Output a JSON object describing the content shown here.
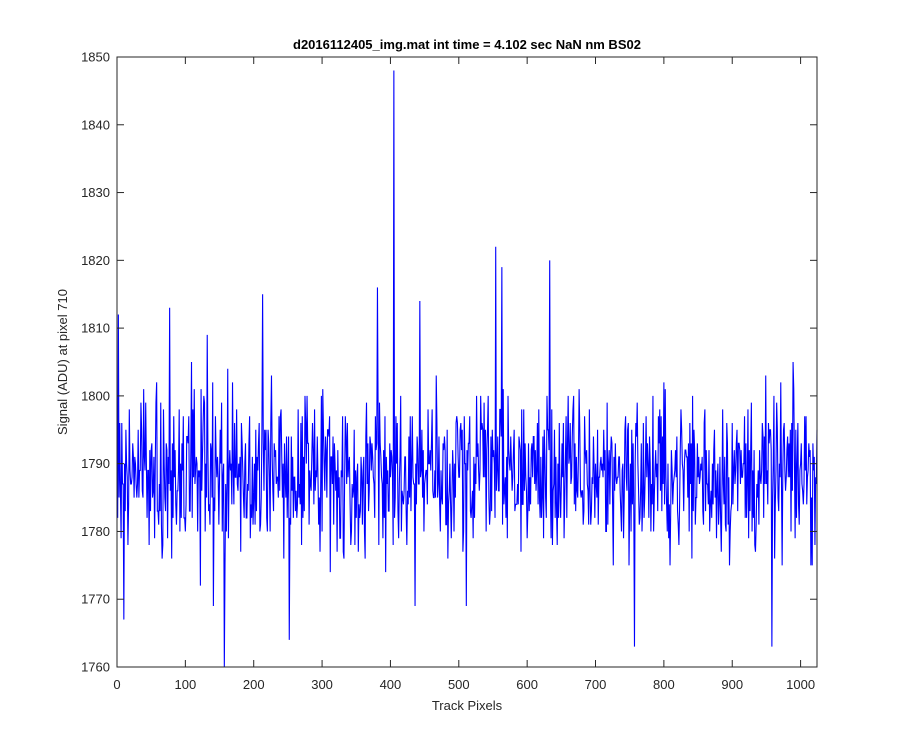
{
  "chart_data": {
    "type": "line",
    "title": "d2016112405_img.mat int time = 4.102 sec  NaN nm BS02",
    "xlabel": "Track Pixels",
    "ylabel": "Signal (ADU) at pixel 710",
    "xlim": [
      0,
      1024
    ],
    "ylim": [
      1760,
      1850
    ],
    "xticks": [
      0,
      100,
      200,
      300,
      400,
      500,
      600,
      700,
      800,
      900,
      1000
    ],
    "yticks": [
      1760,
      1770,
      1780,
      1790,
      1800,
      1810,
      1820,
      1830,
      1840,
      1850
    ],
    "grid": false,
    "series_color": "#0000ff",
    "series": [
      {
        "x_start": 1,
        "x_step": 1,
        "count": 1024,
        "baseline": 1787,
        "noise_range": [
          1771,
          1806
        ],
        "features": [
          {
            "x": 2,
            "y": 1812
          },
          {
            "x": 6,
            "y": 1779
          },
          {
            "x": 10,
            "y": 1767
          },
          {
            "x": 77,
            "y": 1813
          },
          {
            "x": 132,
            "y": 1809
          },
          {
            "x": 141,
            "y": 1769
          },
          {
            "x": 157,
            "y": 1760
          },
          {
            "x": 213,
            "y": 1815
          },
          {
            "x": 252,
            "y": 1764
          },
          {
            "x": 381,
            "y": 1816
          },
          {
            "x": 405,
            "y": 1848
          },
          {
            "x": 436,
            "y": 1769
          },
          {
            "x": 443,
            "y": 1814
          },
          {
            "x": 511,
            "y": 1769
          },
          {
            "x": 554,
            "y": 1822
          },
          {
            "x": 563,
            "y": 1819
          },
          {
            "x": 633,
            "y": 1820
          },
          {
            "x": 757,
            "y": 1763
          },
          {
            "x": 958,
            "y": 1763
          }
        ]
      }
    ]
  }
}
